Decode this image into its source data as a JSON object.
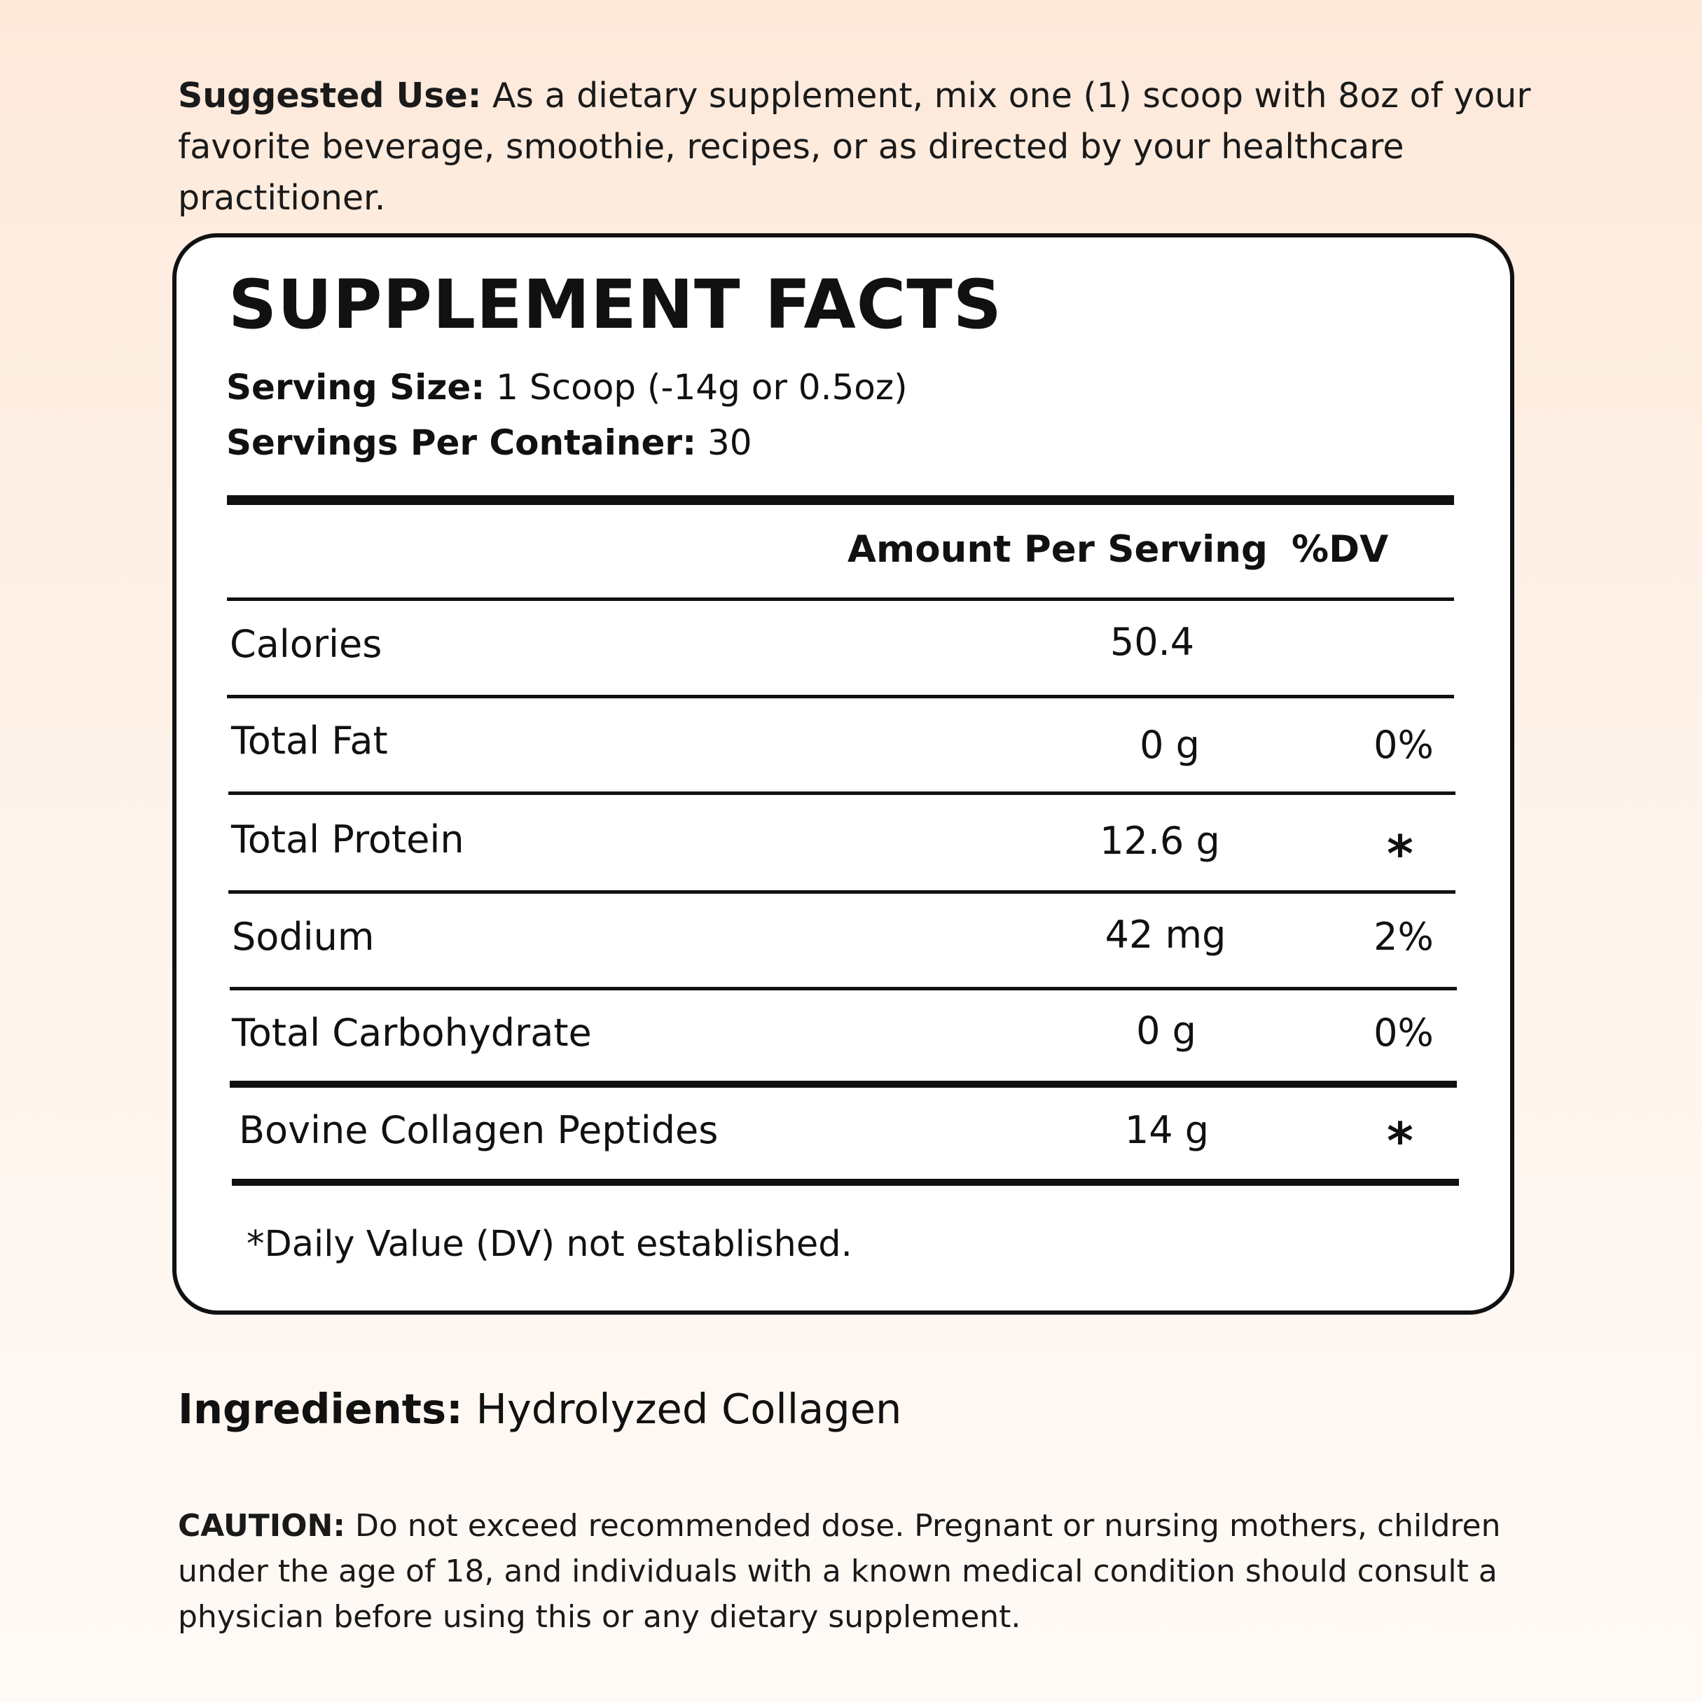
{
  "suggested_use": {
    "label": "Suggested Use:",
    "text": "As a dietary supplement, mix one (1) scoop with 8oz of your favorite beverage, smoothie, recipes, or as directed by your healthcare practitioner."
  },
  "facts": {
    "title": "SUPPLEMENT FACTS",
    "serving_size_label": "Serving Size:",
    "serving_size_value": "1 Scoop (-14g or 0.5oz)",
    "servings_per_container_label": "Servings Per Container:",
    "servings_per_container_value": "30",
    "col_amount": "Amount Per Serving",
    "col_dv": "%DV",
    "rows": [
      {
        "name": "Calories",
        "amount": "50.4",
        "dv": ""
      },
      {
        "name": "Total Fat",
        "amount": "0 g",
        "dv": "0%"
      },
      {
        "name": "Total Protein",
        "amount": "12.6 g",
        "dv": "*"
      },
      {
        "name": "Sodium",
        "amount": "42 mg",
        "dv": "2%"
      },
      {
        "name": "Total Carbohydrate",
        "amount": "0 g",
        "dv": "0%"
      },
      {
        "name": "Bovine Collagen Peptides",
        "amount": "14 g",
        "dv": "*"
      }
    ],
    "footnote": "*Daily Value (DV) not established."
  },
  "ingredients": {
    "label": "Ingredients:",
    "text": "Hydrolyzed Collagen"
  },
  "caution": {
    "label": "CAUTION:",
    "text": "Do not exceed recommended dose. Pregnant or nursing mothers, children under the age of 18, and individuals with a known medical condition should consult a physician before using this or any dietary supplement."
  }
}
